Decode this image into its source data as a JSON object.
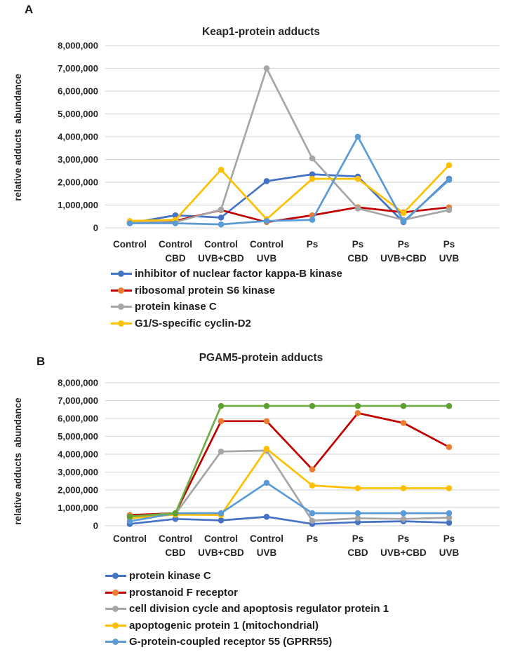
{
  "figure": {
    "panels": [
      {
        "label": "A"
      },
      {
        "label": "B"
      }
    ]
  },
  "text_color": "#262626",
  "gridline_color": "#d9d9d9",
  "chart_data": [
    {
      "type": "line",
      "panel": "A",
      "title": "Keap1-protein adducts",
      "ylabel": "relative adducts  abundance",
      "xlabel": "",
      "ylim": [
        0,
        8000000
      ],
      "ystep": 1000000,
      "ytick_labels": [
        "0",
        "1,000,000",
        "2,000,000",
        "3,000,000",
        "4,000,000",
        "5,000,000",
        "6,000,000",
        "7,000,000",
        "8,000,000"
      ],
      "grid": true,
      "legend_position": "bottom-left",
      "categories": [
        [
          "Control"
        ],
        [
          "Control",
          "CBD"
        ],
        [
          "Control",
          "UVB+CBD"
        ],
        [
          "Control",
          "UVB"
        ],
        [
          "Ps"
        ],
        [
          "Ps",
          "CBD"
        ],
        [
          "Ps",
          "UVB+CBD"
        ],
        [
          "Ps",
          "UVB"
        ]
      ],
      "series": [
        {
          "name": "inhibitor of nuclear factor kappa-B kinase",
          "line_color": "#4472C4",
          "marker_color": "#4472C4",
          "in_legend": true,
          "values": [
            200000,
            550000,
            450000,
            2050000,
            2350000,
            2250000,
            250000,
            2150000
          ]
        },
        {
          "name": "ribosomal protein S6 kinase",
          "line_color": "#C00000",
          "marker_color": "#ED7D31",
          "in_legend": true,
          "values": [
            250000,
            300000,
            780000,
            250000,
            550000,
            900000,
            680000,
            900000
          ]
        },
        {
          "name": "protein kinase C",
          "line_color": "#A6A6A6",
          "marker_color": "#A6A6A6",
          "in_legend": true,
          "values": [
            250000,
            250000,
            800000,
            7000000,
            3050000,
            850000,
            350000,
            780000
          ]
        },
        {
          "name": "G1/S-specific cyclin-D2",
          "line_color": "#FFC000",
          "marker_color": "#FFC000",
          "in_legend": true,
          "values": [
            300000,
            350000,
            2550000,
            380000,
            2150000,
            2150000,
            650000,
            2750000
          ]
        },
        {
          "name": "",
          "line_color": "#5B9BD5",
          "marker_color": "#5B9BD5",
          "in_legend": false,
          "values": [
            200000,
            200000,
            150000,
            300000,
            350000,
            4000000,
            280000,
            2100000
          ]
        }
      ]
    },
    {
      "type": "line",
      "panel": "B",
      "title": "PGAM5-protein adducts",
      "ylabel": "relative adducts  abundance",
      "xlabel": "",
      "ylim": [
        0,
        8000000
      ],
      "ystep": 1000000,
      "ytick_labels": [
        "0",
        "1,000,000",
        "2,000,000",
        "3,000,000",
        "4,000,000",
        "5,000,000",
        "6,000,000",
        "7,000,000",
        "8,000,000"
      ],
      "grid": true,
      "legend_position": "bottom-left",
      "categories": [
        [
          "Control"
        ],
        [
          "Control",
          "CBD"
        ],
        [
          "Control",
          "UVB+CBD"
        ],
        [
          "Control",
          "UVB"
        ],
        [
          "Ps"
        ],
        [
          "Ps",
          "CBD"
        ],
        [
          "Ps",
          "UVB+CBD"
        ],
        [
          "Ps",
          "UVB"
        ]
      ],
      "series": [
        {
          "name": "protein kinase C",
          "line_color": "#4472C4",
          "marker_color": "#4472C4",
          "in_legend": true,
          "values": [
            100000,
            380000,
            300000,
            500000,
            100000,
            200000,
            250000,
            170000
          ]
        },
        {
          "name": "prostanoid F receptor",
          "line_color": "#C00000",
          "marker_color": "#ED7D31",
          "in_legend": true,
          "values": [
            600000,
            700000,
            5850000,
            5850000,
            3150000,
            6300000,
            5750000,
            4400000
          ]
        },
        {
          "name": "cell division cycle and apoptosis regulator protein 1",
          "line_color": "#A6A6A6",
          "marker_color": "#A6A6A6",
          "in_legend": true,
          "values": [
            470000,
            650000,
            4150000,
            4200000,
            280000,
            420000,
            380000,
            450000
          ]
        },
        {
          "name": "apoptogenic protein 1 (mitochondrial)",
          "line_color": "#FFC000",
          "marker_color": "#FFC000",
          "in_legend": true,
          "values": [
            430000,
            620000,
            600000,
            4300000,
            2250000,
            2100000,
            2100000,
            2100000
          ]
        },
        {
          "name": "G-protein-coupled receptor 55 (GPRR55)",
          "line_color": "#5B9BD5",
          "marker_color": "#5B9BD5",
          "in_legend": true,
          "values": [
            250000,
            700000,
            700000,
            2400000,
            700000,
            700000,
            700000,
            700000
          ]
        },
        {
          "name": "",
          "line_color": "#70AD47",
          "marker_color": "#5EA032",
          "in_legend": false,
          "values": [
            520000,
            700000,
            6700000,
            6700000,
            6700000,
            6700000,
            6700000,
            6700000
          ]
        }
      ]
    }
  ]
}
